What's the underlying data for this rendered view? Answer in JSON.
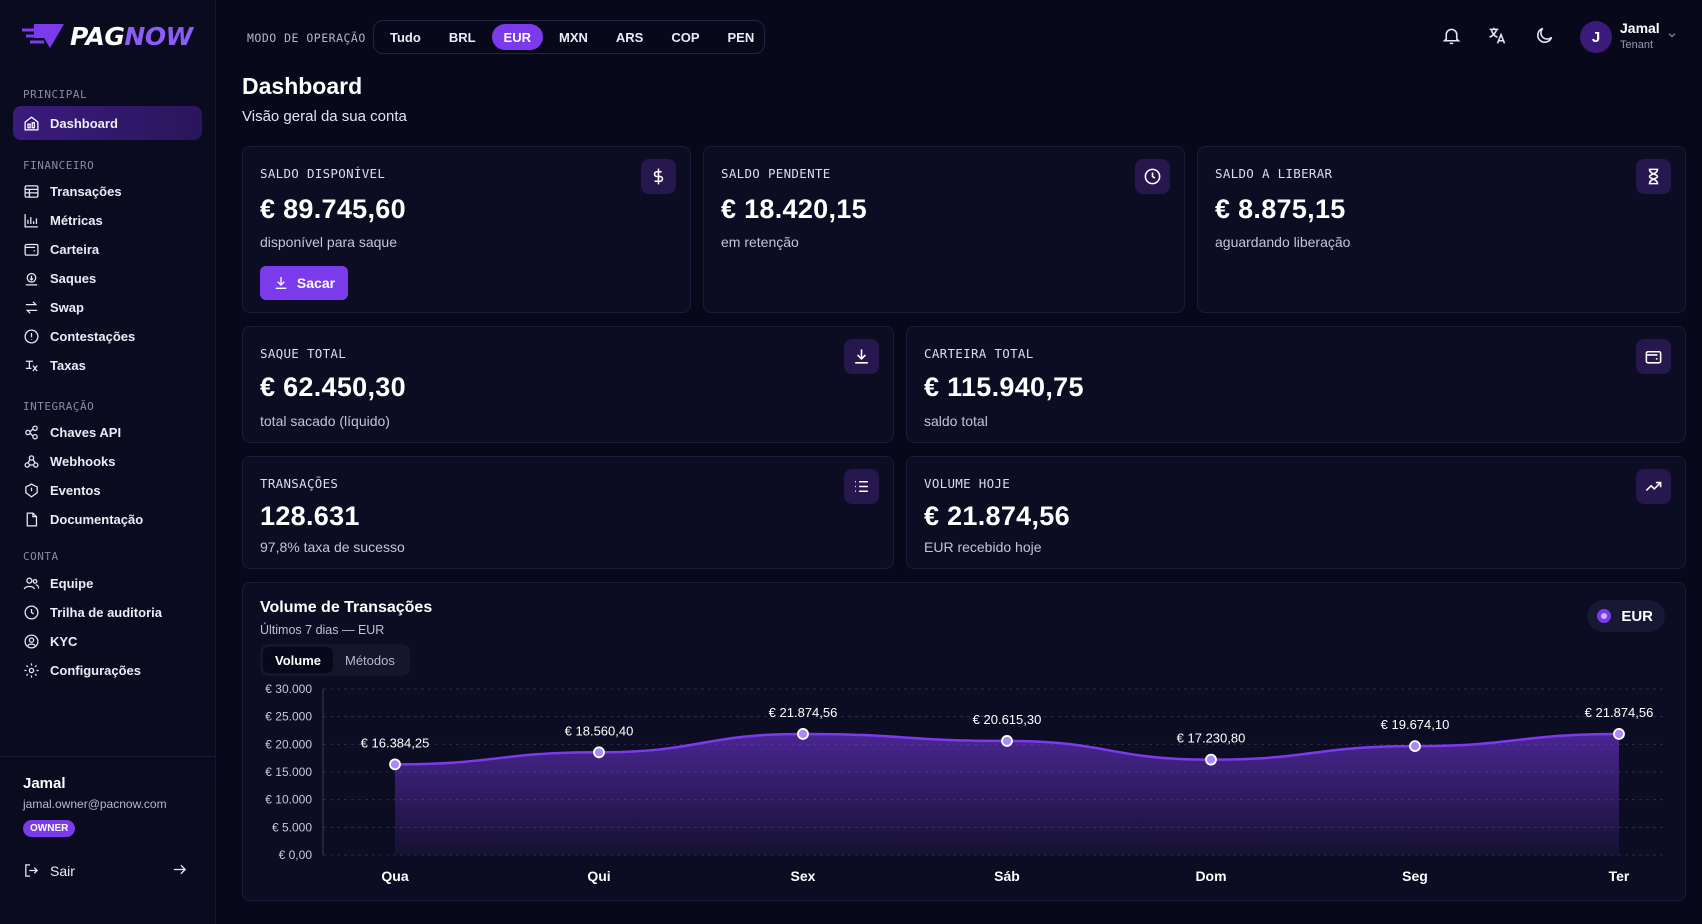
{
  "brand": {
    "pag": "PAG",
    "now": "NOW",
    "accent": "#7c3aed"
  },
  "sidebar": {
    "sections": [
      {
        "label": "PRINCIPAL",
        "items": [
          {
            "label": "Dashboard",
            "icon": "dashboard-icon",
            "active": true
          }
        ]
      },
      {
        "label": "FINANCEIRO",
        "items": [
          {
            "label": "Transações",
            "icon": "table-icon"
          },
          {
            "label": "Métricas",
            "icon": "bar-chart-icon"
          },
          {
            "label": "Carteira",
            "icon": "wallet-icon"
          },
          {
            "label": "Saques",
            "icon": "withdraw-icon"
          },
          {
            "label": "Swap",
            "icon": "swap-icon"
          },
          {
            "label": "Contestações",
            "icon": "dispute-icon"
          },
          {
            "label": "Taxas",
            "icon": "fees-icon"
          }
        ]
      },
      {
        "label": "INTEGRAÇÃO",
        "items": [
          {
            "label": "Chaves API",
            "icon": "key-icon"
          },
          {
            "label": "Webhooks",
            "icon": "webhook-icon"
          },
          {
            "label": "Eventos",
            "icon": "events-icon"
          },
          {
            "label": "Documentação",
            "icon": "document-icon"
          }
        ]
      },
      {
        "label": "CONTA",
        "items": [
          {
            "label": "Equipe",
            "icon": "team-icon"
          },
          {
            "label": "Trilha de auditoria",
            "icon": "history-icon"
          },
          {
            "label": "KYC",
            "icon": "kyc-icon"
          },
          {
            "label": "Configurações",
            "icon": "gear-icon"
          }
        ]
      }
    ],
    "user": {
      "name": "Jamal",
      "email": "jamal.owner@pacnow.com",
      "role_badge": "OWNER"
    },
    "logout_label": "Sair"
  },
  "topbar": {
    "mode_label": "MODO DE OPERAÇÃO",
    "modes": [
      "Tudo",
      "BRL",
      "EUR",
      "MXN",
      "ARS",
      "COP",
      "PEN"
    ],
    "active_mode": "EUR",
    "user": {
      "initial": "J",
      "name": "Jamal",
      "role": "Tenant"
    }
  },
  "page": {
    "title": "Dashboard",
    "subtitle": "Visão geral da sua conta"
  },
  "cards": {
    "saldo_disponivel": {
      "label": "SALDO DISPONÍVEL",
      "value": "€ 89.745,60",
      "sub": "disponível para saque",
      "button": "Sacar"
    },
    "saldo_pendente": {
      "label": "SALDO PENDENTE",
      "value": "€ 18.420,15",
      "sub": "em retenção"
    },
    "saldo_liberar": {
      "label": "SALDO A LIBERAR",
      "value": "€ 8.875,15",
      "sub": "aguardando liberação"
    },
    "saque_total": {
      "label": "SAQUE TOTAL",
      "value": "€ 62.450,30",
      "sub": "total sacado (líquido)"
    },
    "carteira_total": {
      "label": "CARTEIRA TOTAL",
      "value": "€ 115.940,75",
      "sub": "saldo total"
    },
    "transacoes": {
      "label": "TRANSAÇÕES",
      "value": "128.631",
      "sub": "97,8% taxa de sucesso"
    },
    "volume_hoje": {
      "label": "VOLUME HOJE",
      "value": "€ 21.874,56",
      "sub": "EUR recebido hoje"
    }
  },
  "chart_panel": {
    "title": "Volume de Transações",
    "subtitle": "Últimos 7 dias — EUR",
    "tabs": [
      "Volume",
      "Métodos"
    ],
    "active_tab": "Volume",
    "currency_badge": "EUR"
  },
  "chart_data": {
    "type": "area",
    "title": "Volume de Transações",
    "categories": [
      "Qua",
      "Qui",
      "Sex",
      "Sáb",
      "Dom",
      "Seg",
      "Ter"
    ],
    "values": [
      16384.25,
      18560.4,
      21874.56,
      20615.3,
      17230.8,
      19674.1,
      21874.56
    ],
    "value_labels": [
      "€ 16.384,25",
      "€ 18.560,40",
      "€ 21.874,56",
      "€ 20.615,30",
      "€ 17.230,80",
      "€ 19.674,10",
      "€ 21.874,56"
    ],
    "ylim": [
      0,
      30000
    ],
    "yticks": [
      0,
      5000,
      10000,
      15000,
      20000,
      25000,
      30000
    ],
    "ytick_labels": [
      "€ 0,00",
      "€ 5.000",
      "€ 10.000",
      "€ 15.000",
      "€ 20.000",
      "€ 25.000",
      "€ 30.000"
    ],
    "grid": true,
    "color": "#7c3aed"
  }
}
